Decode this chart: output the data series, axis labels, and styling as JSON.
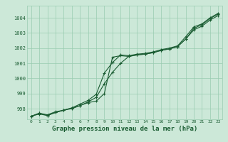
{
  "bg_color": "#cce8d8",
  "grid_color": "#99ccb0",
  "line_color": "#1a5c32",
  "marker_color": "#1a5c32",
  "xlabel": "Graphe pression niveau de la mer (hPa)",
  "xlabel_fontsize": 6.5,
  "ylim": [
    997.3,
    1004.8
  ],
  "xlim": [
    -0.5,
    23.5
  ],
  "yticks": [
    998,
    999,
    1000,
    1001,
    1002,
    1003,
    1004
  ],
  "xticks": [
    0,
    1,
    2,
    3,
    4,
    5,
    6,
    7,
    8,
    9,
    10,
    11,
    12,
    13,
    14,
    15,
    16,
    17,
    18,
    19,
    20,
    21,
    22,
    23
  ],
  "series1": [
    997.5,
    997.7,
    997.6,
    997.8,
    997.9,
    998.0,
    998.2,
    998.4,
    998.5,
    999.0,
    1001.4,
    1001.5,
    1001.45,
    1001.55,
    1001.6,
    1001.7,
    1001.85,
    1001.95,
    1002.1,
    1002.6,
    1003.3,
    1003.55,
    1003.95,
    1004.25
  ],
  "series2": [
    997.5,
    997.7,
    997.55,
    997.75,
    997.9,
    998.05,
    998.2,
    998.45,
    998.75,
    999.65,
    1000.4,
    1001.0,
    1001.45,
    1001.55,
    1001.6,
    1001.7,
    1001.85,
    1001.95,
    1002.1,
    1002.6,
    1003.2,
    1003.45,
    1003.85,
    1004.15
  ],
  "series3": [
    997.5,
    997.65,
    997.55,
    997.75,
    997.9,
    998.05,
    998.3,
    998.55,
    998.95,
    1000.35,
    1001.05,
    1001.55,
    1001.5,
    1001.6,
    1001.65,
    1001.75,
    1001.9,
    1002.0,
    1002.15,
    1002.75,
    1003.4,
    1003.6,
    1004.0,
    1004.3
  ]
}
